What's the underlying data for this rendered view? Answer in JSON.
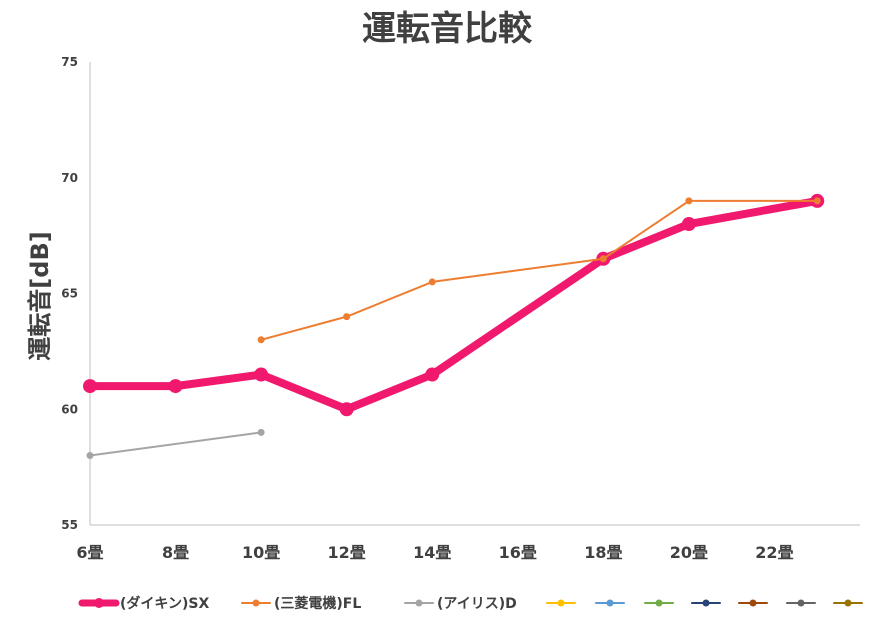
{
  "chart_data": {
    "type": "line",
    "title": "運転音比較",
    "xlabel": "",
    "ylabel": "運転音[dB]",
    "categories": [
      "6畳",
      "8畳",
      "10畳",
      "12畳",
      "14畳",
      "16畳",
      "18畳",
      "20畳",
      "22畳"
    ],
    "x_extra_slot": true,
    "ylim": [
      55,
      75
    ],
    "yticks": [
      55,
      60,
      65,
      70,
      75
    ],
    "grid": false,
    "legend_position": "bottom",
    "series": [
      {
        "name": "(ダイキン)SX",
        "color": "#F0196E",
        "points": [
          [
            0,
            61
          ],
          [
            1,
            61
          ],
          [
            2,
            61.5
          ],
          [
            3,
            60
          ],
          [
            4,
            61.5
          ],
          [
            6,
            66.5
          ],
          [
            7,
            68
          ],
          [
            8.5,
            69
          ]
        ]
      },
      {
        "name": "(三菱電機)FL",
        "color": "#ED7D31",
        "points": [
          [
            2,
            63
          ],
          [
            3,
            64
          ],
          [
            4,
            65.5
          ],
          [
            6,
            66.5
          ],
          [
            7,
            69
          ],
          [
            8.5,
            69
          ]
        ]
      },
      {
        "name": "(アイリス)D",
        "color": "#A5A5A5",
        "points": [
          [
            0,
            58
          ],
          [
            2,
            59
          ]
        ]
      },
      {
        "name": "",
        "color": "#FFC000",
        "points": []
      },
      {
        "name": "",
        "color": "#5B9BD5",
        "points": []
      },
      {
        "name": "",
        "color": "#70AD47",
        "points": []
      },
      {
        "name": "",
        "color": "#264478",
        "points": []
      },
      {
        "name": "",
        "color": "#9E480E",
        "points": []
      },
      {
        "name": "",
        "color": "#636363",
        "points": []
      },
      {
        "name": "",
        "color": "#997300",
        "points": []
      }
    ]
  }
}
